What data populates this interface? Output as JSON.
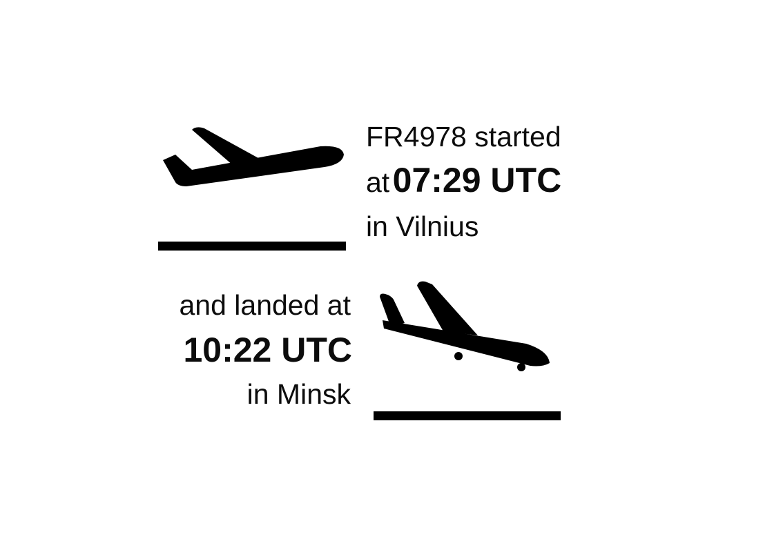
{
  "colors": {
    "ink": "#000000",
    "background": "#ffffff"
  },
  "icons": {
    "takeoff": "airplane-takeoff-icon",
    "landing": "airplane-landing-icon"
  },
  "departure": {
    "flight": "FR4978",
    "verb": "started",
    "preposition": "at",
    "time": "07:29 UTC",
    "location": "in Vilnius"
  },
  "arrival": {
    "phrase": "and landed at",
    "time": "10:22 UTC",
    "location": "in Minsk"
  }
}
